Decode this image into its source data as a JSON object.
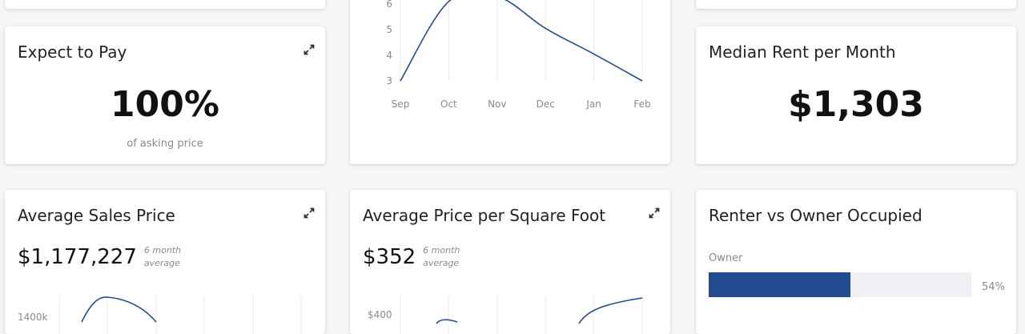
{
  "cards": {
    "expect_to_pay": {
      "title": "Expect to Pay",
      "value": "100%",
      "caption": "of asking price"
    },
    "median_rent": {
      "title": "Median Rent per Month",
      "value": "$1,303"
    },
    "avg_sales_price": {
      "title": "Average Sales Price",
      "value": "$1,177,227",
      "note": "6 month average",
      "y_tick": "1400k"
    },
    "avg_price_sqft": {
      "title": "Average Price per Square Foot",
      "value": "$352",
      "note": "6 month average",
      "y_tick": "$400"
    },
    "renter_owner": {
      "title": "Renter vs Owner Occupied",
      "bar_label": "Owner",
      "bar_percent": 54,
      "bar_percent_label": "54%"
    }
  },
  "icons": {
    "expand": "expand-arrows-icon"
  },
  "colors": {
    "series": "#224b8f",
    "bar": "#224b8f",
    "track": "#eef0f4"
  },
  "chart_data": [
    {
      "type": "line",
      "x": [
        "Sep",
        "Oct",
        "Nov",
        "Dec",
        "Jan",
        "Feb"
      ],
      "y_ticks": [
        3,
        4,
        5,
        6
      ],
      "series": [
        {
          "values": [
            3,
            6.1,
            6.3,
            5.05,
            4.05,
            3.0
          ]
        }
      ]
    }
  ]
}
